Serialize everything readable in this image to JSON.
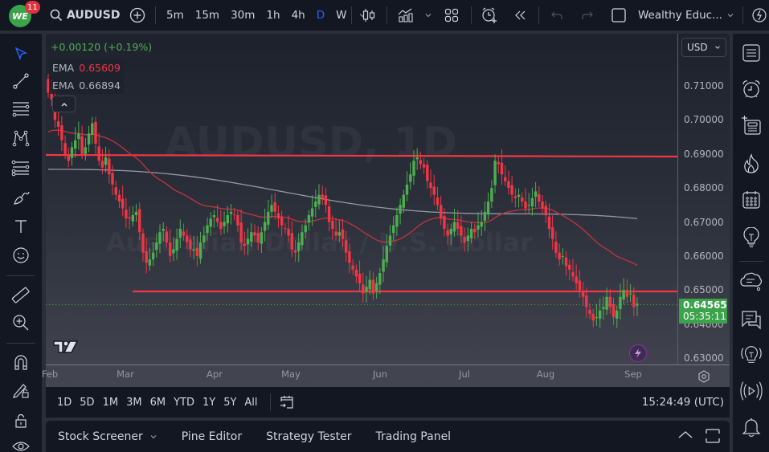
{
  "topbar": {
    "logo_text": "WE",
    "notification_count": "11",
    "symbol": "AUDUSD",
    "intervals": [
      {
        "label": "5m",
        "active": false
      },
      {
        "label": "15m",
        "active": false
      },
      {
        "label": "30m",
        "active": false
      },
      {
        "label": "1h",
        "active": false
      },
      {
        "label": "4h",
        "active": false
      },
      {
        "label": "D",
        "active": true
      },
      {
        "label": "W",
        "active": false
      }
    ],
    "layout_name": "Wealthy Educ...",
    "icons": [
      "search-icon",
      "add-symbol-icon",
      "chevron-down-icon",
      "candles-icon",
      "indicators-icon",
      "layouts-icon",
      "alert-add-icon",
      "replay-icon",
      "undo-icon",
      "redo-icon",
      "checkbox-icon",
      "quick-search-icon"
    ]
  },
  "legend": {
    "change": "+0.00120 (+0.19%)",
    "change_color": "#4caf50",
    "ema1_label": "EMA",
    "ema1_value": "0.65609",
    "ema1_color": "#f23645",
    "ema2_label": "EMA",
    "ema2_value": "0.66894",
    "ema2_color": "#b2b5be"
  },
  "watermark": {
    "line1": "AUDUSD, 1D",
    "line2": "Australian Dollar / U.S. Dollar"
  },
  "price_axis": {
    "currency": "USD",
    "ticks": [
      "0.71000",
      "0.70000",
      "0.69000",
      "0.68000",
      "0.67000",
      "0.66000",
      "0.65000",
      "0.64000",
      "0.63000"
    ],
    "last_price": "0.64565",
    "countdown": "05:35:11",
    "last_price_color": "#3ba34a"
  },
  "time_axis": {
    "labels": [
      "Feb",
      "Mar",
      "Apr",
      "May",
      "Jun",
      "Jul",
      "Aug",
      "Sep"
    ]
  },
  "range_bar": {
    "ranges": [
      "1D",
      "5D",
      "1M",
      "3M",
      "6M",
      "YTD",
      "1Y",
      "5Y",
      "All"
    ],
    "clock": "15:24:49 (UTC)"
  },
  "bottom_bar": {
    "tabs": [
      "Stock Screener",
      "Pine Editor",
      "Strategy Tester",
      "Trading Panel"
    ]
  },
  "left_toolbar": [
    "cursor-icon",
    "trend-line-icon",
    "horizontal-lines-icon",
    "pattern-icon",
    "fib-icon",
    "brush-icon",
    "text-icon",
    "emoji-icon",
    "ruler-icon",
    "zoom-in-icon",
    "magnet-icon",
    "lock-drawing-icon",
    "lock-icon",
    "eye-icon"
  ],
  "right_toolbar": [
    "watchlist-icon",
    "alarm-clock-icon",
    "add-list-icon",
    "hotlist-fire-icon",
    "calendar-icon",
    "idea-bulb-icon",
    "chat-cloud-icon",
    "messages-icon",
    "streams-icon",
    "live-play-icon",
    "bell-icon"
  ],
  "chart_data": {
    "type": "candlestick",
    "title": "AUDUSD, 1D",
    "ylim": [
      0.63,
      0.715
    ],
    "up_color": "#4caf50",
    "down_color": "#f23645",
    "resistance_level": 0.6897,
    "support_level": 0.6497,
    "current_price": 0.64565,
    "x_labels": [
      "Feb",
      "Mar",
      "Apr",
      "May",
      "Jun",
      "Jul",
      "Aug",
      "Sep"
    ],
    "ema_fast_last": 0.65609,
    "ema_slow_last": 0.66894,
    "closes": [
      0.708,
      0.706,
      0.7,
      0.698,
      0.694,
      0.69,
      0.688,
      0.692,
      0.694,
      0.696,
      0.69,
      0.692,
      0.696,
      0.699,
      0.693,
      0.688,
      0.686,
      0.689,
      0.684,
      0.681,
      0.678,
      0.676,
      0.674,
      0.671,
      0.671,
      0.672,
      0.673,
      0.667,
      0.661,
      0.658,
      0.659,
      0.661,
      0.664,
      0.667,
      0.668,
      0.664,
      0.66,
      0.662,
      0.665,
      0.668,
      0.666,
      0.664,
      0.662,
      0.662,
      0.66,
      0.664,
      0.666,
      0.669,
      0.671,
      0.672,
      0.67,
      0.668,
      0.67,
      0.672,
      0.673,
      0.672,
      0.669,
      0.664,
      0.663,
      0.665,
      0.667,
      0.666,
      0.664,
      0.667,
      0.67,
      0.673,
      0.675,
      0.673,
      0.671,
      0.669,
      0.668,
      0.666,
      0.662,
      0.661,
      0.664,
      0.667,
      0.669,
      0.672,
      0.674,
      0.676,
      0.678,
      0.677,
      0.675,
      0.67,
      0.668,
      0.666,
      0.667,
      0.665,
      0.661,
      0.658,
      0.656,
      0.654,
      0.652,
      0.649,
      0.651,
      0.653,
      0.649,
      0.652,
      0.655,
      0.659,
      0.663,
      0.666,
      0.669,
      0.672,
      0.675,
      0.678,
      0.681,
      0.684,
      0.688,
      0.689,
      0.687,
      0.686,
      0.682,
      0.68,
      0.678,
      0.675,
      0.671,
      0.668,
      0.666,
      0.668,
      0.67,
      0.668,
      0.666,
      0.664,
      0.666,
      0.668,
      0.667,
      0.669,
      0.67,
      0.673,
      0.676,
      0.68,
      0.688,
      0.687,
      0.684,
      0.682,
      0.68,
      0.678,
      0.677,
      0.678,
      0.676,
      0.674,
      0.675,
      0.677,
      0.679,
      0.676,
      0.674,
      0.672,
      0.668,
      0.665,
      0.661,
      0.659,
      0.66,
      0.657,
      0.656,
      0.654,
      0.652,
      0.65,
      0.648,
      0.645,
      0.643,
      0.641,
      0.642,
      0.644,
      0.645,
      0.648,
      0.645,
      0.642,
      0.644,
      0.648,
      0.65,
      0.648,
      0.649,
      0.645,
      0.646
    ]
  }
}
